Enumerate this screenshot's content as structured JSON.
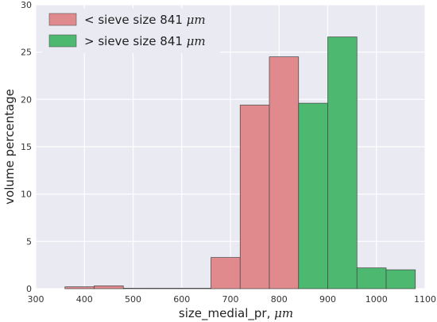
{
  "chart_data": {
    "type": "bar",
    "xlabel": "size_medial_pr, ",
    "xlabel_unit": "μm",
    "ylabel": "volume percentage",
    "xlim": [
      300,
      1100
    ],
    "ylim": [
      0,
      30
    ],
    "xticks": [
      "300",
      "400",
      "500",
      "600",
      "700",
      "800",
      "900",
      "1000",
      "1100"
    ],
    "yticks": [
      "0",
      "5",
      "10",
      "15",
      "20",
      "25",
      "30"
    ],
    "grid": true,
    "legend_position": "top-left",
    "series": [
      {
        "name": "< sieve size 841 ",
        "unit": "μm",
        "color": "#e08a8e",
        "bins": [
          {
            "x0": 360,
            "x1": 420,
            "value": 0.2
          },
          {
            "x0": 420,
            "x1": 480,
            "value": 0.3
          },
          {
            "x0": 480,
            "x1": 540,
            "value": 0.05
          },
          {
            "x0": 540,
            "x1": 600,
            "value": 0.05
          },
          {
            "x0": 600,
            "x1": 660,
            "value": 0.05
          },
          {
            "x0": 660,
            "x1": 720,
            "value": 3.3
          },
          {
            "x0": 720,
            "x1": 780,
            "value": 19.4
          },
          {
            "x0": 780,
            "x1": 840,
            "value": 24.5
          }
        ]
      },
      {
        "name": "> sieve size 841 ",
        "unit": "μm",
        "color": "#4cb870",
        "bins": [
          {
            "x0": 840,
            "x1": 900,
            "value": 19.6
          },
          {
            "x0": 900,
            "x1": 960,
            "value": 26.6
          },
          {
            "x0": 960,
            "x1": 1020,
            "value": 2.2
          },
          {
            "x0": 1020,
            "x1": 1080,
            "value": 2.0
          }
        ]
      }
    ]
  }
}
